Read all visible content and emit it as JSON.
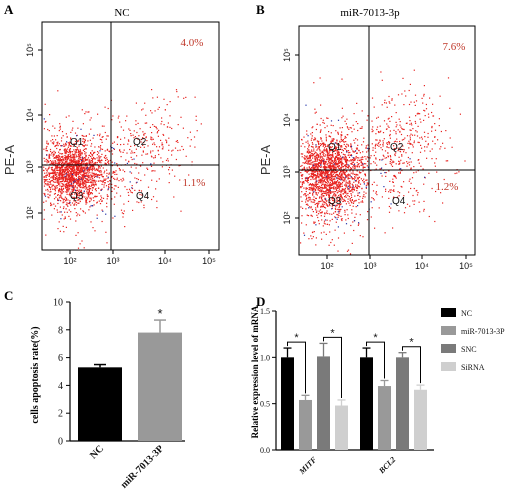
{
  "panels": {
    "A": {
      "letter": "A",
      "title": "NC",
      "ylabel": "PE-A",
      "upper_right_pct": "4.0%",
      "lower_right_pct": "1.1%",
      "quadrants": [
        "Q1",
        "Q2",
        "Q3",
        "Q4"
      ],
      "x_ticks": [
        "10²",
        "10³",
        "10⁴",
        "10⁵"
      ],
      "y_ticks": [
        "10²",
        "10³",
        "10⁴",
        "10⁵"
      ]
    },
    "B": {
      "letter": "B",
      "title": "miR-7013-3p",
      "ylabel": "PE-A",
      "upper_right_pct": "7.6%",
      "lower_right_pct": "1.2%",
      "quadrants": [
        "Q1",
        "Q2",
        "Q3",
        "Q4"
      ],
      "x_ticks": [
        "10²",
        "10³",
        "10⁴",
        "10⁵"
      ],
      "y_ticks": [
        "10²",
        "10³",
        "10⁴",
        "10⁵"
      ]
    },
    "C": {
      "letter": "C"
    },
    "D": {
      "letter": "D"
    }
  },
  "colors": {
    "scatter": "#e8221f",
    "scatter_blue": "#2233aa",
    "pct_text": "#c0392b",
    "nc": "#000000",
    "mir": "#999999",
    "snc": "#7a7a7a",
    "sirna": "#cfcfcf"
  },
  "chart_data": [
    {
      "type": "scatter",
      "panel": "A",
      "title": "NC",
      "ylabel": "PE-A",
      "quadrant_percent": {
        "Q2": 4.0,
        "Q4": 1.1
      }
    },
    {
      "type": "scatter",
      "panel": "B",
      "title": "miR-7013-3p",
      "ylabel": "PE-A",
      "quadrant_percent": {
        "Q2": 7.6,
        "Q4": 1.2
      }
    },
    {
      "type": "bar",
      "panel": "C",
      "ylabel": "cells apoptosis rate(%)",
      "categories": [
        "NC",
        "miR-7013-3P"
      ],
      "values": [
        5.3,
        7.8
      ],
      "errors": [
        0.2,
        0.9
      ],
      "ylim": [
        0,
        10
      ],
      "yticks": [
        0,
        2,
        4,
        6,
        8,
        10
      ],
      "significance": [
        "",
        "*"
      ]
    },
    {
      "type": "bar",
      "panel": "D",
      "ylabel": "Relative expression level of mRNA",
      "categories": [
        "MITF",
        "BCL2"
      ],
      "series": [
        {
          "name": "NC",
          "values": [
            1.0,
            1.0
          ],
          "errors": [
            0.1,
            0.1
          ]
        },
        {
          "name": "miR-7013-3P",
          "values": [
            0.54,
            0.69
          ],
          "errors": [
            0.05,
            0.06
          ]
        },
        {
          "name": "SNC",
          "values": [
            1.01,
            1.0
          ],
          "errors": [
            0.14,
            0.05
          ]
        },
        {
          "name": "SiRNA",
          "values": [
            0.48,
            0.65
          ],
          "errors": [
            0.06,
            0.05
          ]
        }
      ],
      "ylim": [
        0,
        1.5
      ],
      "yticks": [
        "0.0",
        "0.5",
        "1.0",
        "1.5"
      ],
      "significance_label": "*"
    }
  ]
}
